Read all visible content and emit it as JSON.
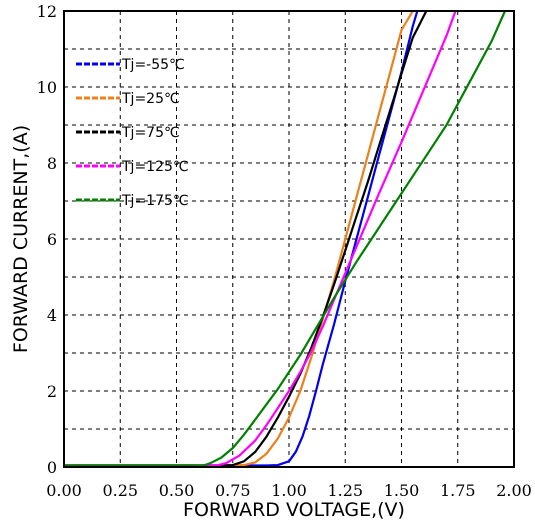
{
  "chart_data": {
    "type": "line",
    "title": "",
    "xlabel": "FORWARD VOLTAGE,(V)",
    "ylabel": "FORWARD CURRENT,(A)",
    "xlim": [
      0,
      2
    ],
    "ylim": [
      0,
      12
    ],
    "x_ticks": [
      "0.00",
      "0.25",
      "0.50",
      "0.75",
      "1.00",
      "1.25",
      "1.50",
      "1.75",
      "2.00"
    ],
    "y_ticks": [
      "0",
      "2",
      "4",
      "6",
      "8",
      "10",
      "12"
    ],
    "grid": true,
    "legend_position": "top-left",
    "series": [
      {
        "name": "Tj=-55℃",
        "color": "#0000ee",
        "points": [
          [
            0.0,
            0.04
          ],
          [
            0.9,
            0.04
          ],
          [
            0.95,
            0.05
          ],
          [
            1.0,
            0.15
          ],
          [
            1.03,
            0.4
          ],
          [
            1.06,
            0.8
          ],
          [
            1.09,
            1.35
          ],
          [
            1.12,
            2.0
          ],
          [
            1.15,
            2.7
          ],
          [
            1.2,
            3.75
          ],
          [
            1.25,
            4.9
          ],
          [
            1.3,
            6.0
          ],
          [
            1.35,
            7.1
          ],
          [
            1.4,
            8.2
          ],
          [
            1.45,
            9.3
          ],
          [
            1.5,
            10.4
          ],
          [
            1.55,
            11.6
          ],
          [
            1.57,
            12.0
          ]
        ]
      },
      {
        "name": "Tj=25℃",
        "color": "#ee7f1a",
        "points": [
          [
            0.0,
            0.04
          ],
          [
            0.75,
            0.04
          ],
          [
            0.8,
            0.05
          ],
          [
            0.85,
            0.12
          ],
          [
            0.9,
            0.35
          ],
          [
            0.95,
            0.75
          ],
          [
            1.0,
            1.3
          ],
          [
            1.05,
            2.0
          ],
          [
            1.1,
            2.9
          ],
          [
            1.15,
            3.9
          ],
          [
            1.2,
            4.9
          ],
          [
            1.25,
            6.0
          ],
          [
            1.3,
            7.1
          ],
          [
            1.35,
            8.2
          ],
          [
            1.4,
            9.3
          ],
          [
            1.45,
            10.4
          ],
          [
            1.5,
            11.5
          ],
          [
            1.55,
            12.0
          ]
        ]
      },
      {
        "name": "Tj=75℃",
        "color": "#000000",
        "points": [
          [
            0.0,
            0.04
          ],
          [
            0.7,
            0.04
          ],
          [
            0.75,
            0.05
          ],
          [
            0.8,
            0.15
          ],
          [
            0.85,
            0.4
          ],
          [
            0.9,
            0.8
          ],
          [
            0.95,
            1.3
          ],
          [
            1.0,
            1.85
          ],
          [
            1.05,
            2.45
          ],
          [
            1.1,
            3.15
          ],
          [
            1.15,
            3.95
          ],
          [
            1.2,
            4.8
          ],
          [
            1.25,
            5.7
          ],
          [
            1.3,
            6.6
          ],
          [
            1.35,
            7.5
          ],
          [
            1.4,
            8.45
          ],
          [
            1.45,
            9.4
          ],
          [
            1.5,
            10.35
          ],
          [
            1.55,
            11.3
          ],
          [
            1.61,
            12.0
          ]
        ]
      },
      {
        "name": "Tj=125℃",
        "color": "#ff00ff",
        "points": [
          [
            0.0,
            0.04
          ],
          [
            0.68,
            0.04
          ],
          [
            0.72,
            0.1
          ],
          [
            0.78,
            0.3
          ],
          [
            0.85,
            0.7
          ],
          [
            0.9,
            1.1
          ],
          [
            0.95,
            1.55
          ],
          [
            1.0,
            2.0
          ],
          [
            1.05,
            2.5
          ],
          [
            1.1,
            3.05
          ],
          [
            1.15,
            3.7
          ],
          [
            1.2,
            4.4
          ],
          [
            1.25,
            5.1
          ],
          [
            1.3,
            5.8
          ],
          [
            1.4,
            7.2
          ],
          [
            1.5,
            8.55
          ],
          [
            1.6,
            9.95
          ],
          [
            1.7,
            11.35
          ],
          [
            1.74,
            12.0
          ]
        ]
      },
      {
        "name": "Tj=175℃",
        "color": "#008000",
        "points": [
          [
            0.0,
            0.04
          ],
          [
            0.62,
            0.04
          ],
          [
            0.65,
            0.1
          ],
          [
            0.7,
            0.25
          ],
          [
            0.75,
            0.5
          ],
          [
            0.8,
            0.85
          ],
          [
            0.85,
            1.25
          ],
          [
            0.9,
            1.65
          ],
          [
            0.95,
            2.05
          ],
          [
            1.0,
            2.5
          ],
          [
            1.05,
            2.95
          ],
          [
            1.1,
            3.45
          ],
          [
            1.15,
            3.95
          ],
          [
            1.2,
            4.45
          ],
          [
            1.3,
            5.4
          ],
          [
            1.4,
            6.3
          ],
          [
            1.5,
            7.2
          ],
          [
            1.6,
            8.1
          ],
          [
            1.7,
            9.0
          ],
          [
            1.8,
            10.1
          ],
          [
            1.9,
            11.2
          ],
          [
            1.96,
            12.0
          ]
        ]
      }
    ]
  }
}
